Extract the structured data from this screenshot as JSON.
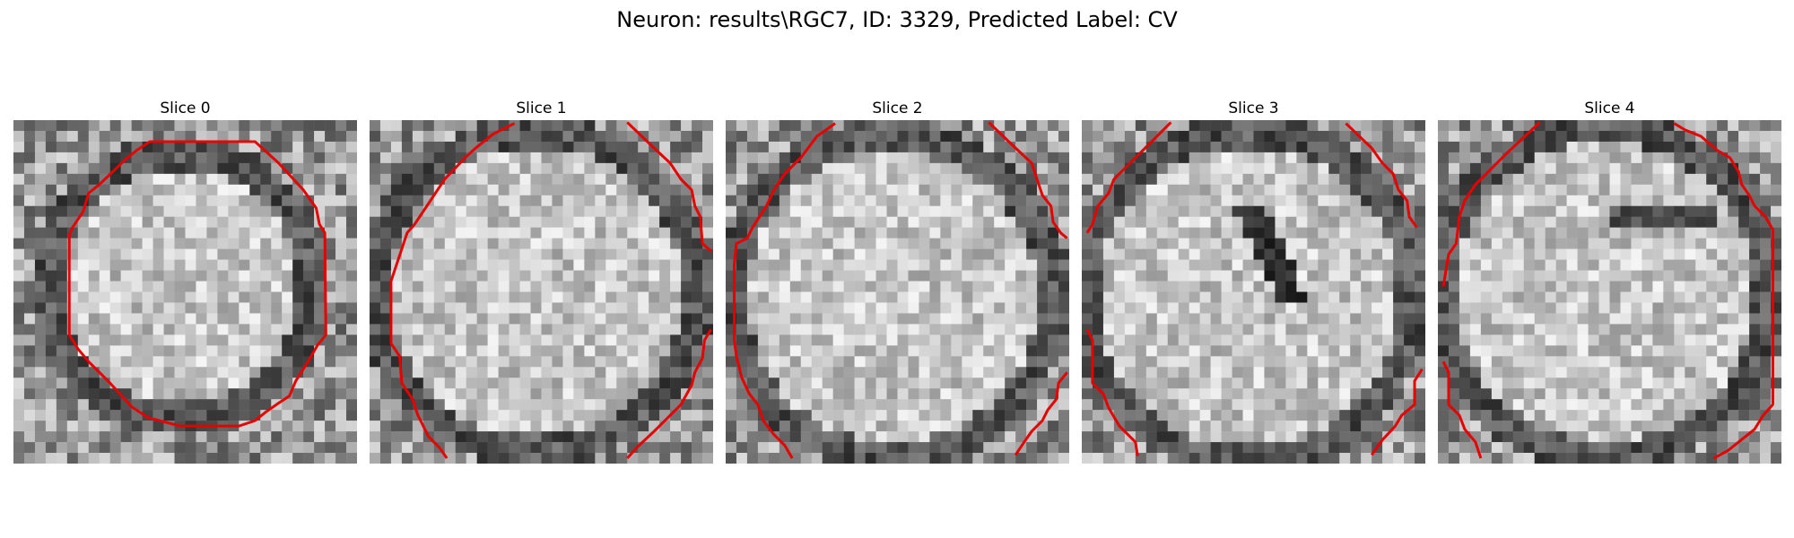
{
  "figure": {
    "title": "Neuron: results\\RGC7, ID: 3329, Predicted Label: CV"
  },
  "panels": [
    {
      "title": "Slice 0"
    },
    {
      "title": "Slice 1"
    },
    {
      "title": "Slice 2"
    },
    {
      "title": "Slice 3"
    },
    {
      "title": "Slice 4"
    }
  ],
  "colors": {
    "contour": "#e60000",
    "background": "#ffffff"
  }
}
